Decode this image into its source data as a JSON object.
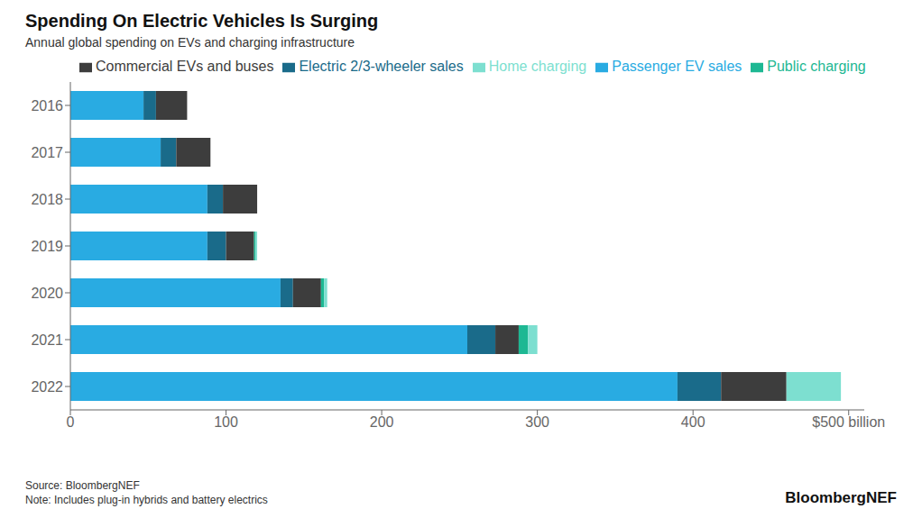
{
  "chart_data": {
    "type": "bar",
    "orientation": "horizontal",
    "stacked": true,
    "title": "Spending On Electric Vehicles Is Surging",
    "subtitle": "Annual global spending on EVs and charging infrastructure",
    "categories": [
      "2016",
      "2017",
      "2018",
      "2019",
      "2020",
      "2021",
      "2022"
    ],
    "series": [
      {
        "name": "Passenger EV sales",
        "color": "#29abe2",
        "values": [
          47,
          58,
          88,
          88,
          135,
          255,
          390
        ]
      },
      {
        "name": "Electric 2/3-wheeler sales",
        "color": "#1a6b8a",
        "values": [
          8,
          10,
          10,
          12,
          8,
          18,
          28
        ]
      },
      {
        "name": "Commercial EVs and buses",
        "color": "#3d3d3d",
        "values": [
          20,
          22,
          22,
          18,
          18,
          15,
          42
        ]
      },
      {
        "name": "Public charging",
        "color": "#1db893",
        "values": [
          0,
          0,
          0,
          1,
          2,
          6,
          0
        ]
      },
      {
        "name": "Home charging",
        "color": "#7ddfd0",
        "values": [
          0,
          0,
          0,
          1,
          2,
          6,
          35
        ]
      }
    ],
    "xlim": [
      0,
      510
    ],
    "xticks": [
      0,
      100,
      200,
      300,
      400,
      {
        "value": 500,
        "label": "$500 billion"
      }
    ],
    "grid": false,
    "legend": "top",
    "annotations": [
      "Source: BloombergNEF\nNote: Includes plug-in hybrids and battery electrics",
      "BloombergNEF"
    ]
  }
}
